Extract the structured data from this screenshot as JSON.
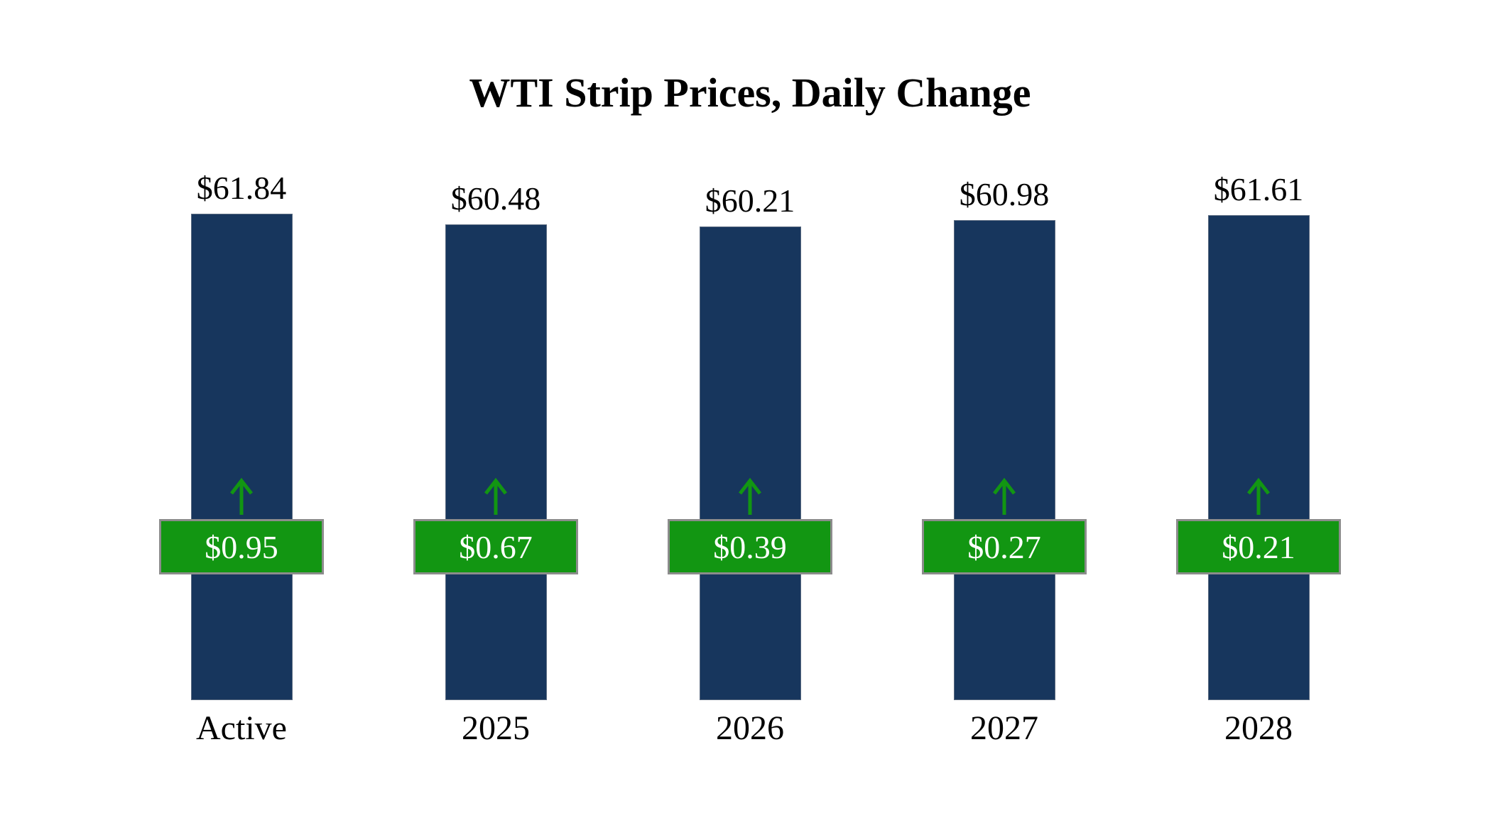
{
  "title": "WTI Strip Prices, Daily Change",
  "chart_data": {
    "type": "bar",
    "title": "WTI Strip Prices, Daily Change",
    "categories": [
      "Active",
      "2025",
      "2026",
      "2027",
      "2028"
    ],
    "series": [
      {
        "name": "Strip Price",
        "values": [
          61.84,
          60.48,
          60.21,
          60.98,
          61.61
        ]
      },
      {
        "name": "Daily Change",
        "values": [
          0.95,
          0.67,
          0.39,
          0.27,
          0.21
        ]
      }
    ],
    "value_labels": [
      "$61.84",
      "$60.48",
      "$60.21",
      "$60.98",
      "$61.61"
    ],
    "change_labels": [
      "$0.95",
      "$0.67",
      "$0.39",
      "$0.27",
      "$0.21"
    ],
    "change_direction": "up",
    "xlabel": "",
    "ylabel": "",
    "ylim": [
      0,
      62
    ],
    "grid": false,
    "legend": "none",
    "colors": {
      "bar": "#17365D",
      "change_badge": "#129612",
      "badge_border": "#8c8c8c",
      "arrow": "#129612",
      "text": "#000000",
      "badge_text": "#ffffff"
    }
  }
}
